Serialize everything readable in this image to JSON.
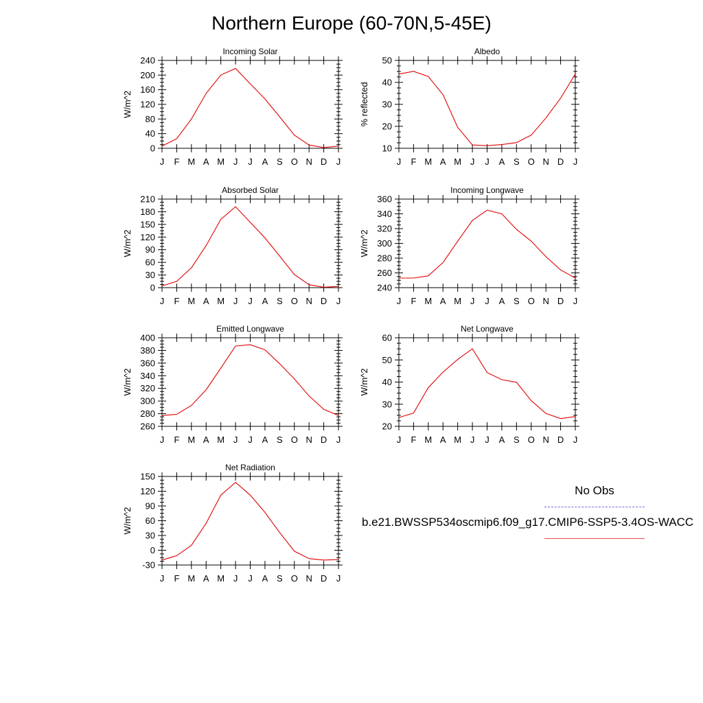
{
  "page_title": "Northern Europe (60-70N,5-45E)",
  "legend": {
    "obs_label": "No Obs",
    "case_label": "b.e21.BWSSP534oscmip6.f09_g17.CMIP6-SSP5-3.4OS-WACC",
    "obs_color": "#6b6bdc",
    "case_color": "#e84a4a"
  },
  "chart_data": [
    {
      "type": "line",
      "title": "Incoming Solar",
      "ylabel": "W/m^2",
      "categories": [
        "J",
        "F",
        "M",
        "A",
        "M",
        "J",
        "J",
        "A",
        "S",
        "O",
        "N",
        "D",
        "J"
      ],
      "ylim": [
        0,
        240
      ],
      "yticks": [
        0,
        40,
        80,
        120,
        160,
        200,
        240
      ],
      "series": [
        {
          "values": [
            6,
            26,
            80,
            150,
            200,
            218,
            176,
            135,
            86,
            36,
            9,
            2,
            6
          ],
          "color": "#e00000"
        }
      ]
    },
    {
      "type": "line",
      "title": "Albedo",
      "ylabel": "% reflected",
      "categories": [
        "J",
        "F",
        "M",
        "A",
        "M",
        "J",
        "J",
        "A",
        "S",
        "O",
        "N",
        "D",
        "J"
      ],
      "ylim": [
        10,
        50
      ],
      "yticks": [
        10,
        20,
        30,
        40,
        50
      ],
      "series": [
        {
          "values": [
            43.8,
            45,
            42.7,
            34.4,
            19.5,
            11.5,
            11.2,
            11.7,
            12.6,
            16,
            23.8,
            32.8,
            43.8
          ],
          "color": "#e00000"
        }
      ]
    },
    {
      "type": "line",
      "title": "Absorbed Solar",
      "ylabel": "W/m^2",
      "categories": [
        "J",
        "F",
        "M",
        "A",
        "M",
        "J",
        "J",
        "A",
        "S",
        "O",
        "N",
        "D",
        "J"
      ],
      "ylim": [
        0,
        210
      ],
      "yticks": [
        0,
        30,
        60,
        90,
        120,
        150,
        180,
        210
      ],
      "series": [
        {
          "values": [
            4,
            15,
            47,
            100,
            162,
            192,
            155,
            118,
            75,
            31,
            7,
            1,
            3
          ],
          "color": "#e00000"
        }
      ]
    },
    {
      "type": "line",
      "title": "Incoming Longwave",
      "ylabel": "W/m^2",
      "categories": [
        "J",
        "F",
        "M",
        "A",
        "M",
        "J",
        "J",
        "A",
        "S",
        "O",
        "N",
        "D",
        "J"
      ],
      "ylim": [
        240,
        360
      ],
      "yticks": [
        240,
        260,
        280,
        300,
        320,
        340,
        360
      ],
      "series": [
        {
          "values": [
            253,
            253,
            256,
            274,
            303,
            331,
            345,
            340,
            319,
            303,
            282,
            264,
            253
          ],
          "color": "#e00000"
        }
      ]
    },
    {
      "type": "line",
      "title": "Emitted Longwave",
      "ylabel": "W/m^2",
      "categories": [
        "J",
        "F",
        "M",
        "A",
        "M",
        "J",
        "J",
        "A",
        "S",
        "O",
        "N",
        "D",
        "J"
      ],
      "ylim": [
        260,
        400
      ],
      "yticks": [
        260,
        280,
        300,
        320,
        340,
        360,
        380,
        400
      ],
      "series": [
        {
          "values": [
            277,
            279,
            293,
            318,
            352,
            387,
            389,
            381,
            359,
            335,
            308,
            287,
            277
          ],
          "color": "#e00000"
        }
      ]
    },
    {
      "type": "line",
      "title": "Net Longwave",
      "ylabel": "W/m^2",
      "categories": [
        "J",
        "F",
        "M",
        "A",
        "M",
        "J",
        "J",
        "A",
        "S",
        "O",
        "N",
        "D",
        "J"
      ],
      "ylim": [
        20,
        60
      ],
      "yticks": [
        20,
        30,
        40,
        50,
        60
      ],
      "series": [
        {
          "values": [
            24,
            26,
            37.5,
            44.5,
            50.2,
            55,
            44.3,
            41.1,
            39.9,
            31.6,
            25.8,
            23.5,
            24.4
          ],
          "color": "#e00000"
        }
      ]
    },
    {
      "type": "line",
      "title": "Net Radiation",
      "ylabel": "W/m^2",
      "categories": [
        "J",
        "F",
        "M",
        "A",
        "M",
        "J",
        "J",
        "A",
        "S",
        "O",
        "N",
        "D",
        "J"
      ],
      "ylim": [
        -30,
        150
      ],
      "yticks": [
        -30,
        0,
        30,
        60,
        90,
        120,
        150
      ],
      "series": [
        {
          "values": [
            -20,
            -11,
            10,
            55,
            112,
            138,
            112,
            77,
            36,
            -2,
            -17,
            -20,
            -19
          ],
          "color": "#e00000"
        }
      ]
    }
  ]
}
